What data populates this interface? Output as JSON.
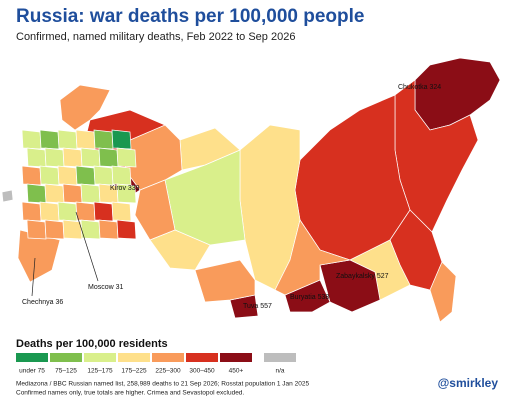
{
  "title": "Russia: war deaths per 100,000 people",
  "subtitle": "Confirmed, named military deaths, Feb 2022 to Sep 2026",
  "map_labels": [
    "Chukotka 324",
    "Kirov 339",
    "Zabaykalsky 527",
    "Buryatia 538",
    "Tuva 557",
    "Moscow 31",
    "Chechnya 36"
  ],
  "legend": {
    "title": "Deaths per 100,000 residents",
    "items": [
      {
        "label": "under 75",
        "color": "#1a9850"
      },
      {
        "label": "75–125",
        "color": "#7fbf4d"
      },
      {
        "label": "125–175",
        "color": "#d9ef8b"
      },
      {
        "label": "175–225",
        "color": "#fee08b"
      },
      {
        "label": "225–300",
        "color": "#f99b5b"
      },
      {
        "label": "300–450",
        "color": "#d7301f"
      },
      {
        "label": "450+",
        "color": "#8b0d16"
      },
      {
        "label": "n/a",
        "color": "#bdbdbd"
      }
    ]
  },
  "footer": [
    "Mediazona / BBC Russian named list, 258,989 deaths to 21 Sep 2026; Rosstat population 1 Jan 2025",
    "Confirmed names only, true totals are higher. Crimea and Sevastopol excluded."
  ],
  "handle": "@smirkley"
}
